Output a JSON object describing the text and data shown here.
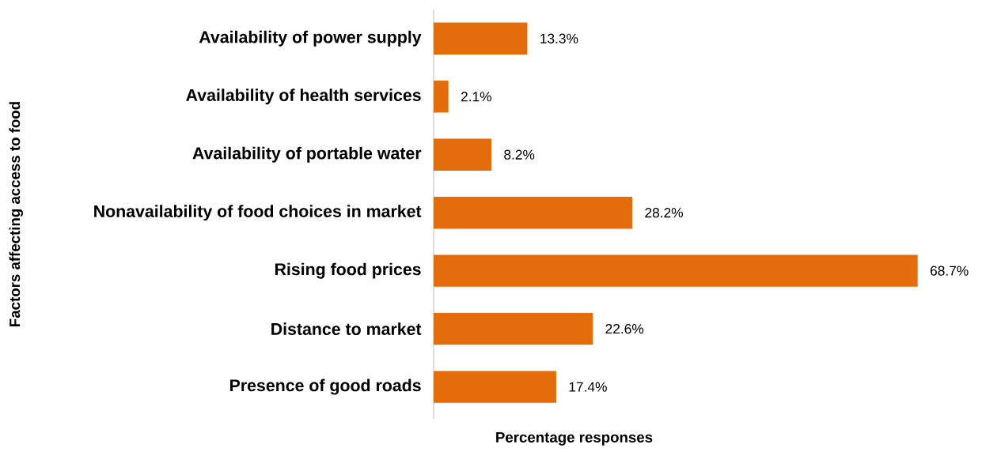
{
  "chart_data": {
    "type": "bar",
    "orientation": "horizontal",
    "xlabel": "Percentage responses",
    "ylabel": "Factors affecting access to food",
    "categories": [
      "Availability of power supply",
      "Availability of health services",
      "Availability of portable water",
      "Nonavailability of food choices in market",
      "Rising food prices",
      "Distance to market",
      "Presence of good roads"
    ],
    "values": [
      13.3,
      2.1,
      8.2,
      28.2,
      68.7,
      22.6,
      17.4
    ],
    "value_labels": [
      "13.3%",
      "2.1%",
      "8.2%",
      "28.2%",
      "68.7%",
      "22.6%",
      "17.4%"
    ],
    "color": "#e46c0a"
  }
}
